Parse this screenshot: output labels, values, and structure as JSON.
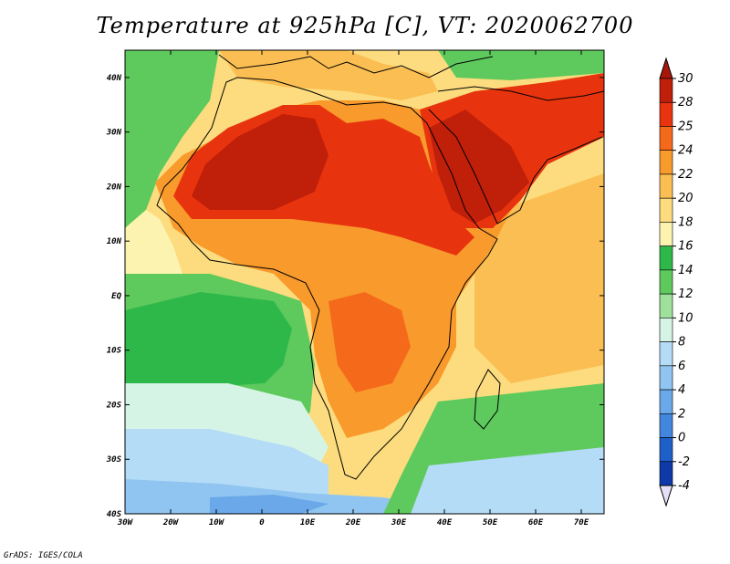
{
  "title": "Temperature at 925hPa [C], VT: 2020062700",
  "credit": "GrADS: IGES/COLA",
  "map": {
    "lon_range": [
      -30,
      75
    ],
    "lat_range": [
      -40,
      45
    ],
    "lat_ticks": [
      {
        "value": 40,
        "label": "40N"
      },
      {
        "value": 30,
        "label": "30N"
      },
      {
        "value": 20,
        "label": "20N"
      },
      {
        "value": 10,
        "label": "10N"
      },
      {
        "value": 0,
        "label": "EQ"
      },
      {
        "value": -10,
        "label": "10S"
      },
      {
        "value": -20,
        "label": "20S"
      },
      {
        "value": -30,
        "label": "30S"
      },
      {
        "value": -40,
        "label": "40S"
      }
    ],
    "lon_ticks": [
      {
        "value": -30,
        "label": "30W"
      },
      {
        "value": -20,
        "label": "20W"
      },
      {
        "value": -10,
        "label": "10W"
      },
      {
        "value": 0,
        "label": "0"
      },
      {
        "value": 10,
        "label": "10E"
      },
      {
        "value": 20,
        "label": "20E"
      },
      {
        "value": 30,
        "label": "30E"
      },
      {
        "value": 40,
        "label": "40E"
      },
      {
        "value": 50,
        "label": "50E"
      },
      {
        "value": 60,
        "label": "60E"
      },
      {
        "value": 70,
        "label": "70E"
      }
    ]
  },
  "colorbar": {
    "levels": [
      {
        "label": "30",
        "color": "#c01f0a"
      },
      {
        "label": "28",
        "color": "#e8340e"
      },
      {
        "label": "25",
        "color": "#f56a1a"
      },
      {
        "label": "24",
        "color": "#f99a2c"
      },
      {
        "label": "22",
        "color": "#fbbe52"
      },
      {
        "label": "20",
        "color": "#fcdc7e"
      },
      {
        "label": "18",
        "color": "#fdf3b0"
      },
      {
        "label": "16",
        "color": "#2fb84a"
      },
      {
        "label": "14",
        "color": "#5ec95c"
      },
      {
        "label": "12",
        "color": "#9fe09a"
      },
      {
        "label": "10",
        "color": "#d6f4e6"
      },
      {
        "label": "8",
        "color": "#b5dcf6"
      },
      {
        "label": "6",
        "color": "#8fc5f0"
      },
      {
        "label": "4",
        "color": "#6aa8ea"
      },
      {
        "label": "2",
        "color": "#4286de"
      },
      {
        "label": "0",
        "color": "#1f5fc8"
      },
      {
        "label": "-2",
        "color": "#0d3aa8"
      },
      {
        "label": "-4",
        "color": "#071d70"
      }
    ],
    "top_color": "#a8160a",
    "bottom_color": "#e6e0f7"
  }
}
